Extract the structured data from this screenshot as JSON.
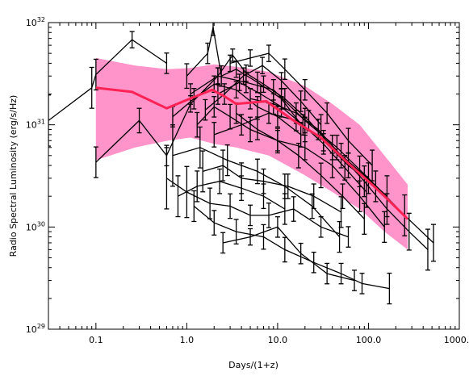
{
  "chart_data": {
    "type": "line",
    "xlabel": "Days/(1+z)",
    "ylabel": "Radio Spectral Luminosity (erg/s/Hz)",
    "xscale": "log",
    "yscale": "log",
    "xlim": [
      0.03,
      1000
    ],
    "ylim": [
      1e+29,
      1e+32
    ],
    "grid": false,
    "legend": "none",
    "x_tick_values": [
      0.1,
      1,
      10,
      100,
      1000
    ],
    "x_tick_labels": [
      "0.1",
      "1.0",
      "10.0",
      "100.0",
      "1000.0"
    ],
    "y_tick_values": [
      1e+29,
      1e+30,
      1e+31,
      1e+32
    ],
    "y_tick_labels": [
      {
        "base": "10",
        "exp": "29"
      },
      {
        "base": "10",
        "exp": "30"
      },
      {
        "base": "10",
        "exp": "31"
      },
      {
        "base": "10",
        "exp": "32"
      }
    ],
    "colors": {
      "data": "#000000",
      "median": "#ff2255",
      "band": "#ff4da6",
      "axes": "#000000"
    },
    "band": {
      "x": [
        0.1,
        0.27,
        0.62,
        1.1,
        2.0,
        3.5,
        8.0,
        20,
        40,
        80,
        150,
        270
      ],
      "lower": [
        4.5e+30,
        6e+30,
        7e+30,
        7.5e+30,
        6.5e+30,
        6e+30,
        5e+30,
        3.2e+30,
        2.2e+30,
        1.5e+30,
        9e+29,
        6e+29
      ],
      "upper": [
        4.5e+31,
        3.8e+31,
        3.5e+31,
        3.6e+31,
        3.9e+31,
        3.7e+31,
        3.3e+31,
        2.4e+31,
        1.6e+31,
        1e+31,
        5e+30,
        2.6e+30
      ]
    },
    "median": {
      "x": [
        0.1,
        0.25,
        0.6,
        1.0,
        1.9,
        2.6,
        3.5,
        7.5,
        15,
        30,
        60,
        100,
        150,
        270
      ],
      "y": [
        2.3e+31,
        2.1e+31,
        1.45e+31,
        1.75e+31,
        2.2e+31,
        1.9e+31,
        1.6e+31,
        1.7e+31,
        1.1e+31,
        7.5e+30,
        4.2e+30,
        2.8e+30,
        2e+30,
        1.2e+30
      ]
    },
    "series": [
      {
        "x": [
          0.03,
          0.09,
          0.1,
          0.25,
          0.6
        ],
        "y": [
          1.1e+31,
          2.3e+31,
          3.1e+31,
          6.8e+31,
          4e+31
        ],
        "err": [
          0.25,
          0.2,
          0.15,
          0.08,
          0.1
        ]
      },
      {
        "x": [
          0.1,
          0.3,
          0.6,
          1.1,
          2.2,
          4.5,
          9,
          20,
          45,
          100,
          250,
          520
        ],
        "y": [
          4.3e+30,
          1.1e+31,
          5e+30,
          1.6e+31,
          3e+31,
          2.6e+31,
          2.2e+31,
          1.1e+31,
          6e+30,
          3e+30,
          1.3e+30,
          7e+29
        ],
        "err": [
          0.15,
          0.12,
          0.1,
          0.08,
          0.08,
          0.1,
          0.1,
          0.12,
          0.12,
          0.15,
          0.2,
          0.18
        ]
      },
      {
        "x": [
          0.6,
          1.0,
          1.8,
          3,
          5,
          8,
          15,
          30,
          60
        ],
        "y": [
          3e+30,
          2.2e+30,
          1.7e+30,
          1.6e+30,
          1.3e+30,
          1.3e+30,
          1.5e+30,
          1e+30,
          8e+29
        ],
        "err": [
          0.3,
          0.25,
          0.15,
          0.12,
          0.1,
          0.12,
          0.12,
          0.1,
          0.1
        ]
      },
      {
        "x": [
          1.2,
          2,
          3.5,
          7,
          12,
          25,
          50,
          85,
          170
        ],
        "y": [
          1.6e+30,
          1.1e+30,
          9e+29,
          8e+29,
          6e+29,
          4.5e+29,
          3.5e+29,
          2.8e+29,
          2.5e+29
        ],
        "err": [
          0.15,
          0.12,
          0.12,
          0.12,
          0.12,
          0.1,
          0.1,
          0.1,
          0.15
        ]
      },
      {
        "x": [
          2.5,
          5,
          10,
          18,
          35,
          70
        ],
        "y": [
          7e+29,
          8e+29,
          1e+30,
          5.5e+29,
          3.5e+29,
          3e+29
        ],
        "err": [
          0.1,
          0.08,
          0.1,
          0.1,
          0.1,
          0.1
        ]
      },
      {
        "x": [
          0.7,
          1.4,
          2.8,
          6,
          12,
          24,
          48
        ],
        "y": [
          5e+30,
          6e+30,
          4.5e+30,
          3.5e+30,
          2.5e+30,
          1.6e+30,
          8e+29
        ],
        "err": [
          0.3,
          0.2,
          0.15,
          0.12,
          0.12,
          0.12,
          0.15
        ]
      },
      {
        "x": [
          1.0,
          1.7,
          1.95,
          2.4,
          3.5,
          6,
          11,
          20
        ],
        "y": [
          3e+31,
          5e+31,
          9e+31,
          3e+31,
          3.5e+31,
          2.6e+31,
          1.8e+31,
          9e+30
        ],
        "err": [
          0.12,
          0.1,
          0.08,
          0.1,
          0.08,
          0.1,
          0.1,
          0.12
        ]
      },
      {
        "x": [
          1.1,
          2.2,
          3.2,
          4.5,
          7,
          12,
          22,
          40,
          80,
          160
        ],
        "y": [
          2e+31,
          3e+31,
          4.8e+31,
          3.2e+31,
          2.5e+31,
          1.8e+31,
          1.1e+31,
          6e+30,
          3.5e+30,
          2e+30
        ],
        "err": [
          0.1,
          0.08,
          0.06,
          0.08,
          0.08,
          0.1,
          0.1,
          0.12,
          0.15,
          0.2
        ]
      },
      {
        "x": [
          3,
          5,
          8,
          12,
          20,
          35,
          60,
          110
        ],
        "y": [
          4e+31,
          4.5e+31,
          5e+31,
          3.5e+31,
          2.2e+31,
          1.3e+31,
          7e+30,
          4e+30
        ],
        "err": [
          0.08,
          0.08,
          0.08,
          0.1,
          0.1,
          0.1,
          0.12,
          0.15
        ]
      },
      {
        "x": [
          1.3,
          2,
          3,
          5,
          10,
          20,
          40,
          80,
          150
        ],
        "y": [
          1e+31,
          1.5e+31,
          1.2e+31,
          9e+30,
          7e+30,
          6e+30,
          4e+30,
          2e+30,
          1e+30
        ],
        "err": [
          0.12,
          0.1,
          0.12,
          0.12,
          0.1,
          0.12,
          0.12,
          0.15,
          0.15
        ]
      },
      {
        "x": [
          0.7,
          1.2,
          2,
          3.5,
          6,
          10,
          18
        ],
        "y": [
          1.2e+31,
          1.8e+31,
          2.5e+31,
          2.2e+31,
          1.5e+31,
          1.2e+31,
          8e+30
        ],
        "err": [
          0.1,
          0.1,
          0.08,
          0.08,
          0.1,
          0.1,
          0.12
        ]
      },
      {
        "x": [
          2,
          4,
          8,
          16,
          32,
          60,
          120
        ],
        "y": [
          8e+30,
          1e+31,
          1.3e+31,
          1.1e+31,
          7e+30,
          4e+30,
          2.5e+30
        ],
        "err": [
          0.12,
          0.1,
          0.1,
          0.1,
          0.1,
          0.12,
          0.15
        ]
      },
      {
        "x": [
          1.5,
          2.5,
          4,
          7,
          13,
          25,
          50
        ],
        "y": [
          3.5e+30,
          4e+30,
          3e+30,
          2.8e+30,
          2.5e+30,
          2e+30,
          1.4e+30
        ],
        "err": [
          0.2,
          0.15,
          0.15,
          0.12,
          0.12,
          0.12,
          0.15
        ]
      },
      {
        "x": [
          2.2,
          3.8,
          6.5,
          11,
          19,
          32,
          55,
          95
        ],
        "y": [
          2e+31,
          2.6e+31,
          2e+31,
          1.5e+31,
          1e+31,
          6.5e+30,
          3.8e+30,
          2.2e+30
        ],
        "err": [
          0.1,
          0.08,
          0.08,
          0.1,
          0.1,
          0.1,
          0.12,
          0.15
        ]
      },
      {
        "x": [
          1.6,
          2.6,
          4.2,
          6.8,
          11,
          18,
          30
        ],
        "y": [
          1.4e+31,
          2e+31,
          3e+31,
          3.8e+31,
          2.7e+31,
          1.7e+31,
          1e+31
        ],
        "err": [
          0.1,
          0.1,
          0.08,
          0.08,
          0.08,
          0.1,
          0.1
        ]
      },
      {
        "x": [
          5,
          9,
          16,
          28,
          50,
          90,
          160,
          280,
          450
        ],
        "y": [
          1.8e+31,
          1.6e+31,
          1.3e+31,
          9e+30,
          5e+30,
          2.8e+30,
          1.5e+30,
          9e+29,
          6e+29
        ],
        "err": [
          0.1,
          0.1,
          0.1,
          0.1,
          0.12,
          0.15,
          0.15,
          0.18,
          0.2
        ]
      },
      {
        "x": [
          0.8,
          1.3,
          2.3,
          4,
          7,
          12
        ],
        "y": [
          2e+30,
          2.5e+30,
          2.8e+30,
          2.4e+30,
          2e+30,
          1.5e+30
        ],
        "err": [
          0.2,
          0.15,
          0.12,
          0.12,
          0.12,
          0.15
        ]
      },
      {
        "x": [
          3.5,
          6,
          10,
          17,
          30,
          52,
          90
        ],
        "y": [
          1.3e+31,
          9e+30,
          7e+30,
          5e+30,
          3.2e+30,
          2e+30,
          1.2e+30
        ],
        "err": [
          0.1,
          0.1,
          0.12,
          0.12,
          0.12,
          0.12,
          0.15
        ]
      }
    ]
  }
}
